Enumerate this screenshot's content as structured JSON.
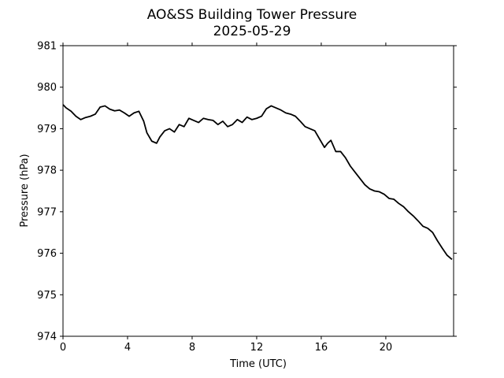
{
  "chart_data": {
    "type": "line",
    "title": "AO&SS Building Tower Pressure",
    "subtitle": "2025-05-29",
    "xlabel": "Time (UTC)",
    "ylabel": "Pressure (hPa)",
    "xlim": [
      0,
      24.2
    ],
    "ylim": [
      974,
      981
    ],
    "xticks": [
      0,
      4,
      8,
      12,
      16,
      20
    ],
    "xtick_labels": [
      "0",
      "4",
      "8",
      "12",
      "16",
      "20"
    ],
    "yticks": [
      974,
      975,
      976,
      977,
      978,
      979,
      980,
      981
    ],
    "ytick_labels": [
      "974",
      "975",
      "976",
      "977",
      "978",
      "979",
      "980",
      "981"
    ],
    "grid": false,
    "series": [
      {
        "color": "#000000",
        "x": [
          0,
          0.2,
          0.5,
          0.8,
          1.1,
          1.4,
          1.7,
          2.0,
          2.3,
          2.6,
          2.9,
          3.2,
          3.5,
          3.8,
          4.1,
          4.4,
          4.7,
          5.0,
          5.2,
          5.5,
          5.8,
          6.0,
          6.3,
          6.6,
          6.9,
          7.2,
          7.5,
          7.8,
          8.1,
          8.4,
          8.7,
          9.0,
          9.3,
          9.6,
          9.9,
          10.2,
          10.5,
          10.8,
          11.1,
          11.4,
          11.7,
          12.0,
          12.3,
          12.6,
          12.9,
          13.2,
          13.5,
          13.8,
          14.1,
          14.4,
          14.7,
          15.0,
          15.3,
          15.6,
          15.9,
          16.2,
          16.4,
          16.6,
          16.9,
          17.2,
          17.5,
          17.8,
          18.1,
          18.4,
          18.7,
          19.0,
          19.3,
          19.6,
          19.9,
          20.2,
          20.5,
          20.8,
          21.1,
          21.4,
          21.7,
          22.0,
          22.3,
          22.6,
          22.9,
          23.2,
          23.5,
          23.8,
          24.1
        ],
        "y": [
          979.58,
          979.5,
          979.42,
          979.3,
          979.22,
          979.27,
          979.3,
          979.35,
          979.52,
          979.55,
          979.47,
          979.43,
          979.45,
          979.38,
          979.3,
          979.38,
          979.42,
          979.18,
          978.9,
          978.7,
          978.65,
          978.8,
          978.95,
          979.0,
          978.92,
          979.1,
          979.05,
          979.25,
          979.2,
          979.15,
          979.25,
          979.22,
          979.2,
          979.1,
          979.18,
          979.05,
          979.1,
          979.22,
          979.15,
          979.28,
          979.22,
          979.25,
          979.3,
          979.48,
          979.55,
          979.5,
          979.45,
          979.38,
          979.35,
          979.3,
          979.18,
          979.05,
          979.0,
          978.95,
          978.75,
          978.55,
          978.65,
          978.72,
          978.45,
          978.45,
          978.3,
          978.1,
          977.95,
          977.8,
          977.65,
          977.55,
          977.5,
          977.48,
          977.42,
          977.32,
          977.3,
          977.2,
          977.12,
          977.0,
          976.9,
          976.78,
          976.65,
          976.6,
          976.5,
          976.3,
          976.12,
          975.95,
          975.85
        ]
      }
    ]
  }
}
